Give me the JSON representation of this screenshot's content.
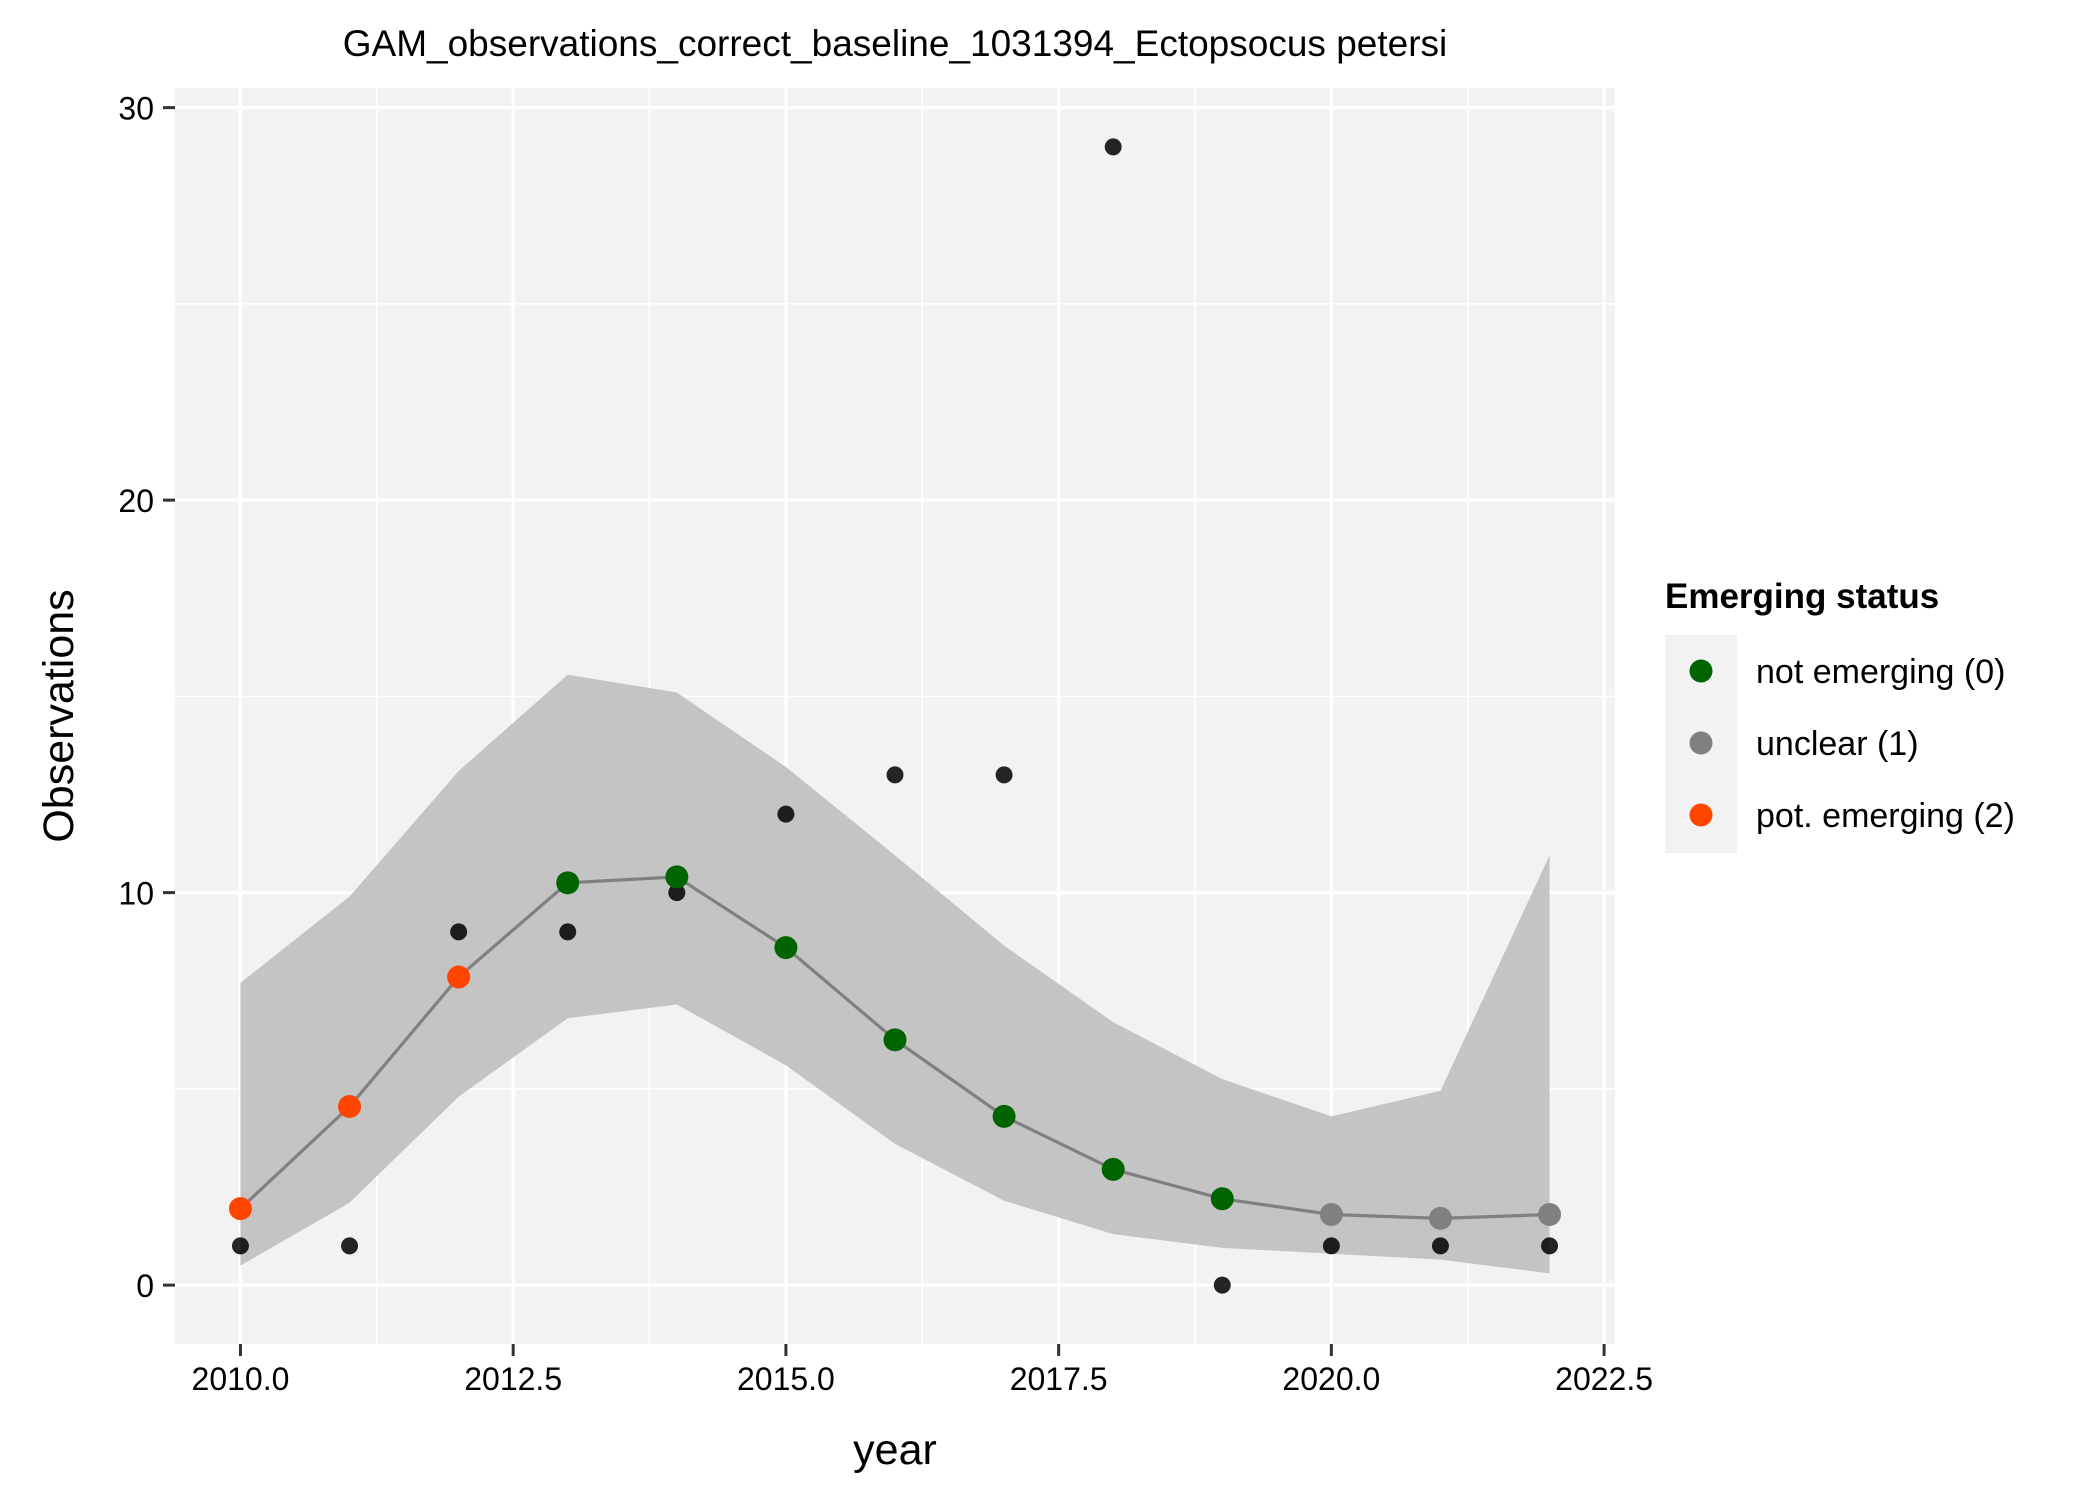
{
  "chart_data": {
    "type": "scatter",
    "title": "GAM_observations_correct_baseline_1031394_Ectopsocus petersi",
    "xlabel": "year",
    "ylabel": "Observations",
    "xlim": [
      2009.4,
      2022.6
    ],
    "ylim": [
      -1.5,
      30.5
    ],
    "x_ticks": [
      2010.0,
      2012.5,
      2015.0,
      2017.5,
      2020.0,
      2022.5
    ],
    "x_tick_labels": [
      "2010.0",
      "2012.5",
      "2015.0",
      "2017.5",
      "2020.0",
      "2022.5"
    ],
    "y_ticks": [
      0,
      10,
      20,
      30
    ],
    "y_tick_labels": [
      "0",
      "10",
      "20",
      "30"
    ],
    "grid": true,
    "observed": {
      "x": [
        2010,
        2011,
        2012,
        2013,
        2014,
        2015,
        2016,
        2017,
        2018,
        2019,
        2020,
        2021,
        2022
      ],
      "y": [
        1,
        1,
        9,
        9,
        10,
        12,
        13,
        13,
        29,
        0,
        1,
        1,
        1
      ]
    },
    "fit": {
      "x": [
        2010,
        2011,
        2012,
        2013,
        2014,
        2015,
        2016,
        2017,
        2018,
        2019,
        2020,
        2021,
        2022
      ],
      "y": [
        1.95,
        4.55,
        7.85,
        10.25,
        10.4,
        8.6,
        6.25,
        4.3,
        2.95,
        2.2,
        1.8,
        1.7,
        1.8
      ],
      "lower": [
        0.5,
        2.1,
        4.8,
        6.8,
        7.15,
        5.6,
        3.6,
        2.15,
        1.3,
        0.95,
        0.8,
        0.65,
        0.3
      ],
      "upper": [
        7.7,
        9.9,
        13.1,
        15.55,
        15.1,
        13.2,
        10.95,
        8.65,
        6.7,
        5.25,
        4.3,
        4.95,
        10.95
      ],
      "status": [
        2,
        2,
        2,
        0,
        0,
        0,
        0,
        0,
        0,
        0,
        1,
        1,
        1
      ]
    },
    "legend": {
      "title": "Emerging status",
      "position": "right",
      "entries": [
        {
          "label": "not emerging (0)",
          "status": 0,
          "color": "#006400"
        },
        {
          "label": "unclear (1)",
          "status": 1,
          "color": "#808080"
        },
        {
          "label": "pot. emerging (2)",
          "status": 2,
          "color": "#FF4500"
        }
      ]
    },
    "colors": {
      "panel_background": "#F2F2F2",
      "grid": "#FFFFFF",
      "ribbon": "#C4C4C4",
      "fit_line": "#808080",
      "observed_point": "#000000"
    }
  }
}
